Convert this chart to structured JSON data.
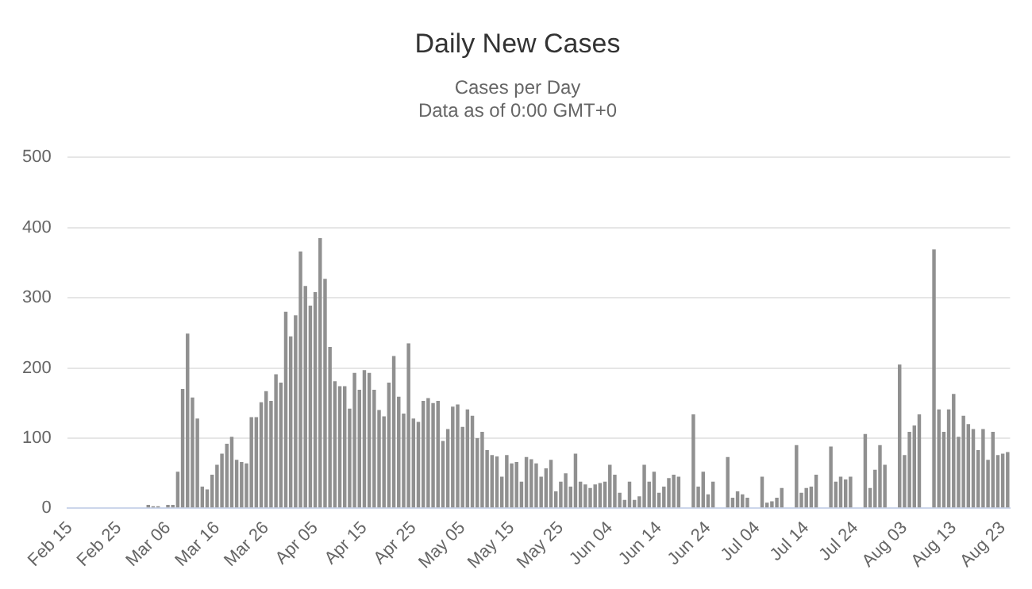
{
  "chart_data": {
    "type": "bar",
    "title": "Daily New Cases",
    "subtitle": "Cases per Day\nData as of 0:00 GMT+0",
    "categories": [
      "Feb 15",
      null,
      null,
      null,
      null,
      null,
      null,
      null,
      null,
      null,
      "Feb 25",
      null,
      null,
      null,
      null,
      null,
      null,
      null,
      null,
      null,
      "Mar 06",
      null,
      null,
      null,
      null,
      null,
      null,
      null,
      null,
      null,
      "Mar 16",
      null,
      null,
      null,
      null,
      null,
      null,
      null,
      null,
      null,
      "Mar 26",
      null,
      null,
      null,
      null,
      null,
      null,
      null,
      null,
      null,
      "Apr 05",
      null,
      null,
      null,
      null,
      null,
      null,
      null,
      null,
      null,
      "Apr 15",
      null,
      null,
      null,
      null,
      null,
      null,
      null,
      null,
      null,
      "Apr 25",
      null,
      null,
      null,
      null,
      null,
      null,
      null,
      null,
      null,
      "May 05",
      null,
      null,
      null,
      null,
      null,
      null,
      null,
      null,
      null,
      "May 15",
      null,
      null,
      null,
      null,
      null,
      null,
      null,
      null,
      null,
      "May 25",
      null,
      null,
      null,
      null,
      null,
      null,
      null,
      null,
      null,
      "Jun 04",
      null,
      null,
      null,
      null,
      null,
      null,
      null,
      null,
      null,
      "Jun 14",
      null,
      null,
      null,
      null,
      null,
      null,
      null,
      null,
      null,
      "Jun 24",
      null,
      null,
      null,
      null,
      null,
      null,
      null,
      null,
      null,
      "Jul 04",
      null,
      null,
      null,
      null,
      null,
      null,
      null,
      null,
      null,
      "Jul 14",
      null,
      null,
      null,
      null,
      null,
      null,
      null,
      null,
      null,
      "Jul 24",
      null,
      null,
      null,
      null,
      null,
      null,
      null,
      null,
      null,
      "Aug 03",
      null,
      null,
      null,
      null,
      null,
      null,
      null,
      null,
      null,
      "Aug 13",
      null,
      null,
      null,
      null,
      null,
      null,
      null,
      null,
      null,
      "Aug 23",
      null
    ],
    "values": [
      0,
      0,
      0,
      0,
      0,
      0,
      0,
      0,
      0,
      0,
      0,
      0,
      0,
      0,
      0,
      0,
      5,
      3,
      3,
      0,
      5,
      5,
      52,
      170,
      249,
      158,
      128,
      31,
      27,
      48,
      62,
      78,
      92,
      102,
      69,
      66,
      64,
      130,
      130,
      151,
      167,
      153,
      191,
      179,
      280,
      245,
      275,
      366,
      317,
      289,
      308,
      385,
      327,
      230,
      181,
      174,
      174,
      142,
      193,
      169,
      197,
      193,
      169,
      140,
      131,
      179,
      217,
      159,
      135,
      235,
      128,
      123,
      153,
      157,
      150,
      153,
      96,
      113,
      145,
      148,
      116,
      141,
      132,
      100,
      109,
      83,
      76,
      74,
      45,
      76,
      64,
      66,
      38,
      73,
      70,
      64,
      45,
      57,
      69,
      24,
      38,
      50,
      31,
      78,
      38,
      34,
      29,
      34,
      36,
      38,
      62,
      48,
      22,
      12,
      38,
      12,
      17,
      62,
      38,
      52,
      22,
      31,
      43,
      48,
      45,
      null,
      null,
      134,
      31,
      52,
      20,
      38,
      null,
      null,
      73,
      15,
      24,
      20,
      15,
      null,
      null,
      45,
      8,
      10,
      15,
      29,
      null,
      null,
      90,
      22,
      29,
      31,
      48,
      null,
      null,
      88,
      38,
      45,
      41,
      45,
      null,
      null,
      106,
      29,
      55,
      90,
      62,
      null,
      null,
      205,
      76,
      109,
      118,
      134,
      null,
      null,
      369,
      141,
      109,
      141,
      163,
      102,
      132,
      120,
      113,
      83,
      113,
      69,
      109,
      76,
      78,
      80
    ],
    "color": "#909090",
    "ylim": [
      0,
      500
    ],
    "yticks": [
      0,
      100,
      200,
      300,
      400,
      500
    ],
    "grid": "y",
    "legend": false
  }
}
